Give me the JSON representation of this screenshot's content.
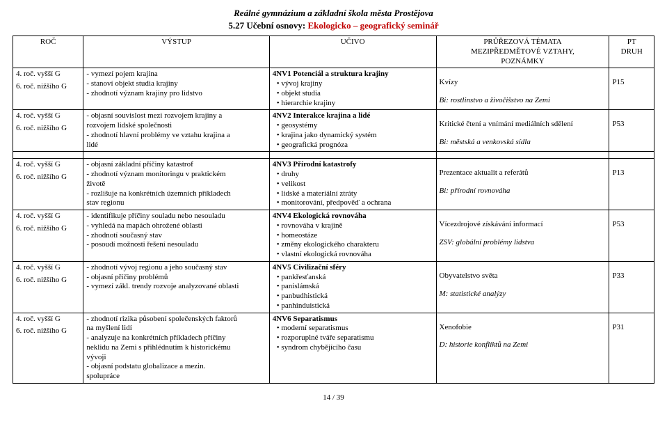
{
  "header": {
    "line1": "Reálné gymnázium a základní škola města Prostějova",
    "line2_prefix": "5.27 Učební osnovy: ",
    "line2_red": "Ekologicko – geografický seminář"
  },
  "columns": {
    "roc": "ROČ",
    "vystup": "VÝSTUP",
    "ucivo": "UČIVO",
    "pozn": "PRŮŘEZOVÁ TÉMATA\nMEZIPŘEDMĚTOVÉ VZTAHY,\nPOZNÁMKY",
    "pt": "PT\nDRUH"
  },
  "roc_pair": {
    "top": "4. roč. vyšší G",
    "bottom": "6. roč. nižšího G"
  },
  "rows": [
    {
      "vystup": "- vymezí pojem krajina\n- stanoví objekt studia krajiny\n- zhodnotí význam krajiny pro lidstvo",
      "ucivo_title": "4NV1 Potenciál a struktura krajiny",
      "ucivo_items": [
        "vývoj krajiny",
        "objekt studia",
        "hierarchie krajiny"
      ],
      "pozn_top": "Kvízy",
      "pozn_bottom_it": "Bi: rostlinstvo a živočišstvo na Zemi",
      "pt": "P15"
    },
    {
      "vystup": "- objasní souvislost mezi rozvojem krajiny a\n  rozvojem lidské společnosti\n- zhodnotí hlavní problémy ve vztahu krajina a\n  lidé",
      "ucivo_title": "4NV2 Interakce krajina a lidé",
      "ucivo_items": [
        "geosystémy",
        "krajina jako dynamický systém",
        "geografická prognóza"
      ],
      "pozn_top": "Kritické čtení a vnímání mediálních sdělení",
      "pozn_bottom_it": "Bi: městská a venkovská sídla",
      "pt": "P53"
    },
    {
      "vystup": "- objasní základní příčiny katastrof\n- zhodnotí význam monitoringu v praktickém\n  životě\n- rozlišuje na konkrétních územních příkladech\n  stav regionu",
      "ucivo_title": "4NV3 Přírodní katastrofy",
      "ucivo_items": [
        "druhy",
        "velikost",
        "lidské a materiální ztráty",
        "monitorování, předpověď a ochrana"
      ],
      "pozn_top": " Prezentace aktualit a referátů",
      "pozn_bottom_it": "Bi: přírodní rovnováha",
      "pt": "P13"
    },
    {
      "vystup": "- identifikuje příčiny souladu nebo nesouladu\n- vyhledá na mapách ohrožené oblasti\n- zhodnotí současný stav\n- posoudí možnosti řešení nesouladu",
      "ucivo_title": "4NV4 Ekologická rovnováha",
      "ucivo_items": [
        "rovnováha v krajině",
        "homeostáze",
        "změny ekologického charakteru",
        "vlastní ekologická rovnováha"
      ],
      "pozn_top": "Vícezdrojové získávání informací",
      "pozn_bottom_it": "ZSV: globální problémy lidstva",
      "pt": "P53"
    },
    {
      "vystup": "- zhodnotí vývoj regionu a jeho současný stav\n- objasní příčiny problémů\n- vymezí zákl. trendy rozvoje analyzované oblasti",
      "ucivo_title": "4NV5 Civilizační sféry",
      "ucivo_items": [
        "pankřesťanská",
        "panislámská",
        "panbudhistická",
        "panhinduistická"
      ],
      "pozn_top": "Obyvatelstvo světa",
      "pozn_bottom_it": "M: statistické analýzy",
      "pt": "P33"
    },
    {
      "vystup": " - zhodnotí rizika působení společenských faktorů\nna myšlení lidí\n- analyzuje na konkrétních příkladech příčiny\nneklidu na Zemi s přihlédnutím k historickému\nvývoji\n - objasní podstatu globalizace a mezin.\nspolupráce",
      "ucivo_title": "4NV6 Separatismus",
      "ucivo_items": [
        "moderní separatismus",
        "rozporuplné tváře separatismu",
        "syndrom chybějícího času"
      ],
      "pozn_top": "Xenofobie",
      "pozn_bottom_it": "D: historie konfliktů  na Zemi",
      "pt": "P31"
    }
  ],
  "footer": "14 / 39"
}
